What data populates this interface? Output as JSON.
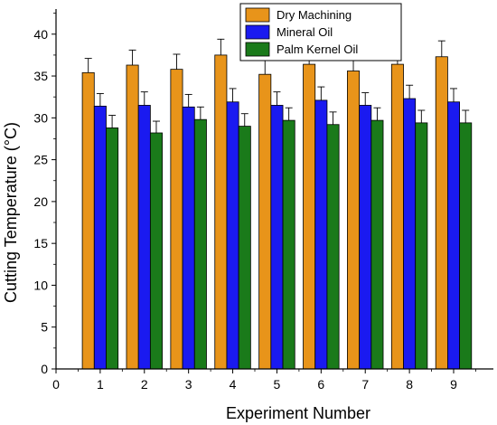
{
  "chart_data": {
    "type": "bar",
    "xlabel": "Experiment Number",
    "ylabel": "Cutting Temperature (°C)",
    "xlim": [
      0,
      9.9
    ],
    "ylim": [
      0,
      43
    ],
    "xticks": [
      0,
      1,
      2,
      3,
      4,
      5,
      6,
      7,
      8,
      9
    ],
    "yticks": [
      0,
      5,
      10,
      15,
      20,
      25,
      30,
      35,
      40
    ],
    "categories": [
      1,
      2,
      3,
      4,
      5,
      6,
      7,
      8,
      9
    ],
    "legend_position": "top-right",
    "grid": false,
    "series": [
      {
        "name": "Dry Machining",
        "color": "#E8941A",
        "values": [
          35.4,
          36.3,
          35.8,
          37.5,
          35.2,
          36.4,
          35.6,
          36.4,
          37.3
        ],
        "errors": [
          1.7,
          1.8,
          1.8,
          1.9,
          1.7,
          1.8,
          1.8,
          1.8,
          1.9
        ]
      },
      {
        "name": "Mineral Oil",
        "color": "#1A1AF0",
        "values": [
          31.4,
          31.5,
          31.3,
          31.9,
          31.5,
          32.1,
          31.5,
          32.3,
          31.9
        ],
        "errors": [
          1.5,
          1.6,
          1.5,
          1.6,
          1.6,
          1.6,
          1.5,
          1.6,
          1.6
        ]
      },
      {
        "name": "Palm Kernel Oil",
        "color": "#1A7A1A",
        "values": [
          28.8,
          28.2,
          29.8,
          29.0,
          29.7,
          29.2,
          29.7,
          29.4,
          29.4
        ],
        "errors": [
          1.5,
          1.4,
          1.5,
          1.5,
          1.5,
          1.5,
          1.5,
          1.5,
          1.5
        ]
      }
    ]
  }
}
